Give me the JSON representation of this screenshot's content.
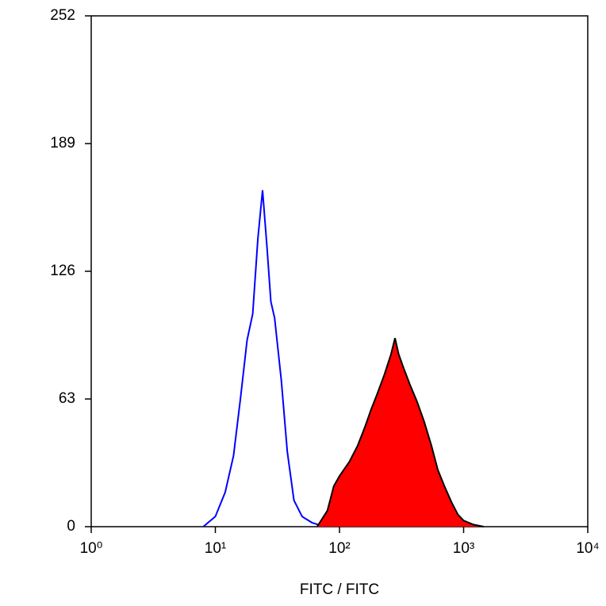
{
  "chart_data": {
    "type": "histogram-overlay",
    "xlabel": "FITC / FITC",
    "xscale": "log",
    "xlim": [
      1,
      10000
    ],
    "ylim": [
      0,
      252
    ],
    "xticks": [
      {
        "value": 1,
        "label": "10⁰"
      },
      {
        "value": 10,
        "label": "10¹"
      },
      {
        "value": 100,
        "label": "10²"
      },
      {
        "value": 1000,
        "label": "10³"
      },
      {
        "value": 10000,
        "label": "10⁴"
      }
    ],
    "yticks": [
      0,
      63,
      126,
      189,
      252
    ],
    "series": [
      {
        "color": "#0000ff",
        "x": [
          8,
          10,
          12,
          14,
          16,
          18,
          20,
          22,
          24,
          26,
          28,
          30,
          34,
          38,
          43,
          50,
          60,
          76
        ],
        "values": [
          0,
          5,
          17,
          35,
          64,
          92,
          105,
          142,
          166,
          139,
          111,
          103,
          72,
          37,
          13,
          5,
          2,
          0
        ]
      },
      {
        "color": "#000000",
        "fill": "#ff0000",
        "x": [
          66,
          80,
          90,
          100,
          120,
          140,
          160,
          180,
          200,
          230,
          260,
          280,
          300,
          330,
          370,
          420,
          480,
          550,
          620,
          700,
          800,
          900,
          1000,
          1200,
          1450
        ],
        "values": [
          0,
          8,
          20,
          25,
          32,
          40,
          49,
          58,
          65,
          75,
          85,
          93,
          85,
          78,
          70,
          62,
          52,
          40,
          28,
          20,
          12,
          6,
          3,
          1,
          0
        ]
      }
    ]
  }
}
